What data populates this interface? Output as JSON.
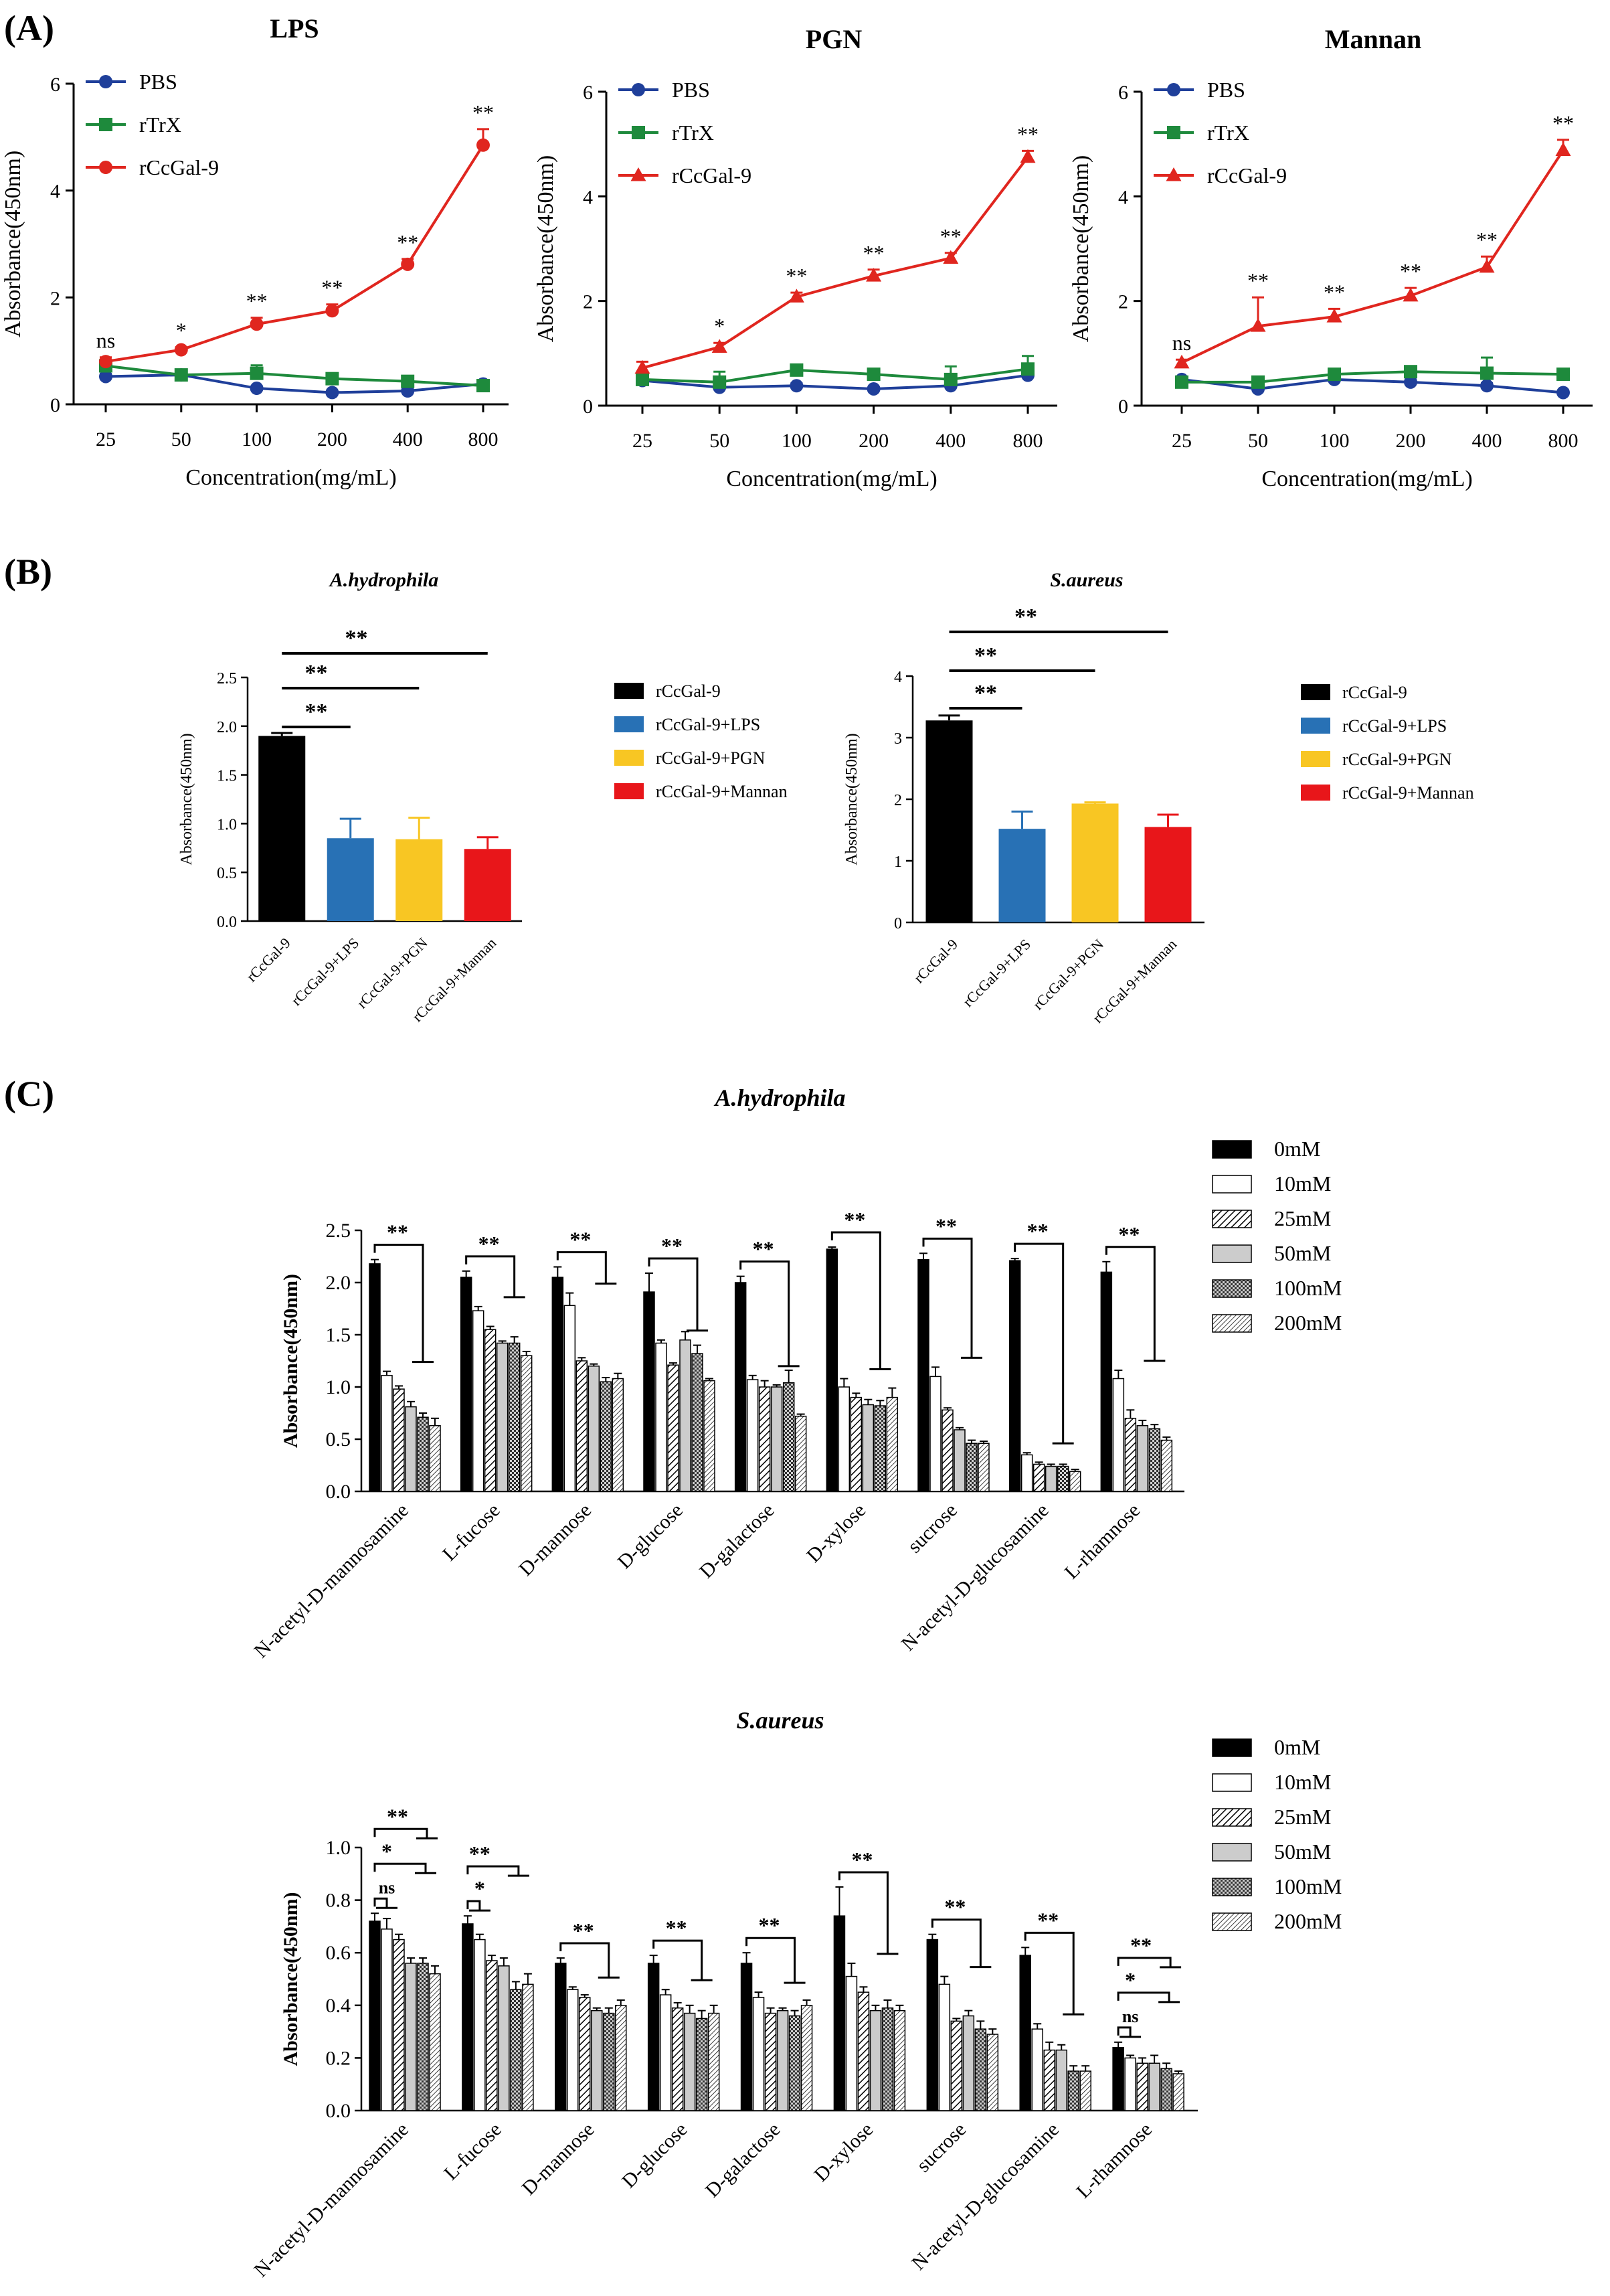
{
  "panels": {
    "a": "(A)",
    "b": "(B)",
    "c": "(C)"
  },
  "colors": {
    "pbs": "#1f3f9a",
    "rtrx": "#1e8a3c",
    "rccgal": "#e0261f",
    "bar_black": "#000000",
    "bar_lps": "#2871b5",
    "bar_pgn": "#f8c623",
    "bar_mannan": "#e8161a"
  },
  "chart_data": [
    {
      "id": "A1",
      "type": "line",
      "title": "LPS",
      "categories": [
        "25",
        "50",
        "100",
        "200",
        "400",
        "800"
      ],
      "xlabel": "Concentration(mg/mL)",
      "ylabel": "Absorbance(450nm)",
      "ylim": [
        0,
        6
      ],
      "yticks": [
        "0",
        "2",
        "4",
        "6"
      ],
      "legend": "top-left",
      "series": [
        {
          "name": "PBS",
          "marker": "circle",
          "color": "#1f3f9a",
          "values": [
            0.52,
            0.55,
            0.3,
            0.22,
            0.25,
            0.38
          ],
          "errors": [
            0.05,
            0.04,
            0.04,
            0.03,
            0.04,
            0.05
          ]
        },
        {
          "name": "rTrX",
          "marker": "square",
          "color": "#1e8a3c",
          "values": [
            0.72,
            0.55,
            0.58,
            0.48,
            0.43,
            0.35
          ],
          "errors": [
            0.1,
            0.06,
            0.15,
            0.06,
            0.05,
            0.04
          ]
        },
        {
          "name": "rCcGal-9",
          "marker": "circle",
          "color": "#e0261f",
          "values": [
            0.8,
            1.02,
            1.5,
            1.75,
            2.62,
            4.85
          ],
          "errors": [
            0.08,
            0.05,
            0.12,
            0.12,
            0.1,
            0.3
          ]
        }
      ],
      "annotations": [
        "ns",
        "*",
        "**",
        "**",
        "**",
        "**"
      ]
    },
    {
      "id": "A2",
      "type": "line",
      "title": "PGN",
      "categories": [
        "25",
        "50",
        "100",
        "200",
        "400",
        "800"
      ],
      "xlabel": "Concentration(mg/mL)",
      "ylabel": "Absorbance(450nm)",
      "ylim": [
        0,
        6
      ],
      "yticks": [
        "0",
        "2",
        "4",
        "6"
      ],
      "legend": "top-left",
      "series": [
        {
          "name": "PBS",
          "marker": "circle",
          "color": "#1f3f9a",
          "values": [
            0.48,
            0.35,
            0.38,
            0.32,
            0.38,
            0.58
          ],
          "errors": [
            0.05,
            0.04,
            0.05,
            0.04,
            0.05,
            0.08
          ]
        },
        {
          "name": "rTrX",
          "marker": "square",
          "color": "#1e8a3c",
          "values": [
            0.5,
            0.45,
            0.68,
            0.6,
            0.5,
            0.7
          ],
          "errors": [
            0.1,
            0.2,
            0.1,
            0.08,
            0.25,
            0.25
          ]
        },
        {
          "name": "rCcGal-9",
          "marker": "triangle",
          "color": "#e0261f",
          "values": [
            0.72,
            1.12,
            2.08,
            2.48,
            2.82,
            4.75
          ],
          "errors": [
            0.12,
            0.08,
            0.08,
            0.12,
            0.1,
            0.12
          ]
        }
      ],
      "annotations": [
        "",
        "*",
        "**",
        "**",
        "**",
        "**"
      ]
    },
    {
      "id": "A3",
      "type": "line",
      "title": "Mannan",
      "categories": [
        "25",
        "50",
        "100",
        "200",
        "400",
        "800"
      ],
      "xlabel": "Concentration(mg/mL)",
      "ylabel": "Absorbance(450nm)",
      "ylim": [
        0,
        6
      ],
      "yticks": [
        "0",
        "2",
        "4",
        "6"
      ],
      "legend": "top-left",
      "series": [
        {
          "name": "PBS",
          "marker": "circle",
          "color": "#1f3f9a",
          "values": [
            0.5,
            0.32,
            0.5,
            0.45,
            0.38,
            0.25
          ],
          "errors": [
            0.05,
            0.05,
            0.06,
            0.05,
            0.05,
            0.04
          ]
        },
        {
          "name": "rTrX",
          "marker": "square",
          "color": "#1e8a3c",
          "values": [
            0.45,
            0.45,
            0.6,
            0.65,
            0.62,
            0.6
          ],
          "errors": [
            0.06,
            0.06,
            0.1,
            0.08,
            0.3,
            0.05
          ]
        },
        {
          "name": "rCcGal-9",
          "marker": "triangle",
          "color": "#e0261f",
          "values": [
            0.82,
            1.52,
            1.7,
            2.1,
            2.65,
            4.88
          ],
          "errors": [
            0.06,
            0.55,
            0.15,
            0.15,
            0.2,
            0.2
          ]
        }
      ],
      "annotations": [
        "ns",
        "**",
        "**",
        "**",
        "**",
        "**"
      ]
    },
    {
      "id": "B1",
      "type": "bar",
      "title": "A.hydrophila",
      "categories": [
        "rCcGal-9",
        "rCcGal-9+LPS",
        "rCcGal-9+PGN",
        "rCcGal-9+Mannan"
      ],
      "values": [
        1.9,
        0.85,
        0.84,
        0.74
      ],
      "errors": [
        0.03,
        0.2,
        0.22,
        0.12
      ],
      "colors": [
        "#000000",
        "#2871b5",
        "#f8c623",
        "#e8161a"
      ],
      "ylabel": "Absorbance(450nm)",
      "ylim": [
        0,
        2.5
      ],
      "yticks": [
        "0.0",
        "0.5",
        "1.0",
        "1.5",
        "2.0",
        "2.5"
      ],
      "legend": "right",
      "legend_labels": [
        "rCcGal-9",
        "rCcGal-9+LPS",
        "rCcGal-9+PGN",
        "rCcGal-9+Mannan"
      ],
      "significance": [
        {
          "from": 0,
          "to": 1,
          "label": "**"
        },
        {
          "from": 0,
          "to": 2,
          "label": "**"
        },
        {
          "from": 0,
          "to": 3,
          "label": "**"
        }
      ]
    },
    {
      "id": "B2",
      "type": "bar",
      "title": "S.aureus",
      "categories": [
        "rCcGal-9",
        "rCcGal-9+LPS",
        "rCcGal-9+PGN",
        "rCcGal-9+Mannan"
      ],
      "values": [
        3.28,
        1.52,
        1.93,
        1.55
      ],
      "errors": [
        0.08,
        0.28,
        0.02,
        0.2
      ],
      "colors": [
        "#000000",
        "#2871b5",
        "#f8c623",
        "#e8161a"
      ],
      "ylabel": "Absorbance(450nm)",
      "ylim": [
        0,
        4
      ],
      "yticks": [
        "0",
        "1",
        "2",
        "3",
        "4"
      ],
      "legend": "right",
      "legend_labels": [
        "rCcGal-9",
        "rCcGal-9+LPS",
        "rCcGal-9+PGN",
        "rCcGal-9+Mannan"
      ],
      "significance": [
        {
          "from": 0,
          "to": 1,
          "label": "**"
        },
        {
          "from": 0,
          "to": 2,
          "label": "**"
        },
        {
          "from": 0,
          "to": 3,
          "label": "**"
        }
      ]
    },
    {
      "id": "C1",
      "type": "bar",
      "title": "A.hydrophila",
      "categories": [
        "N-acetyl-D-mannosamine",
        "L-fucose",
        "D-mannose",
        "D-glucose",
        "D-galactose",
        "D-xylose",
        "sucrose",
        "N-acetyl-D-glucosamine",
        "L-rhamnose"
      ],
      "series_names": [
        "0mM",
        "10mM",
        "25mM",
        "50mM",
        "100mM",
        "200mM"
      ],
      "values": [
        [
          2.18,
          1.11,
          0.98,
          0.81,
          0.71,
          0.63
        ],
        [
          2.05,
          1.73,
          1.55,
          1.42,
          1.42,
          1.3
        ],
        [
          2.05,
          1.78,
          1.25,
          1.2,
          1.05,
          1.08
        ],
        [
          1.91,
          1.42,
          1.21,
          1.45,
          1.32,
          1.06
        ],
        [
          2.0,
          1.07,
          1.0,
          1.0,
          1.04,
          0.72
        ],
        [
          2.32,
          1.0,
          0.9,
          0.83,
          0.82,
          0.9
        ],
        [
          2.22,
          1.1,
          0.78,
          0.59,
          0.46,
          0.46
        ],
        [
          2.21,
          0.35,
          0.26,
          0.24,
          0.24,
          0.19
        ],
        [
          2.1,
          1.08,
          0.7,
          0.63,
          0.6,
          0.49
        ]
      ],
      "errors": [
        [
          0.04,
          0.04,
          0.03,
          0.05,
          0.04,
          0.07
        ],
        [
          0.06,
          0.04,
          0.03,
          0.02,
          0.06,
          0.04
        ],
        [
          0.1,
          0.12,
          0.03,
          0.02,
          0.04,
          0.05
        ],
        [
          0.18,
          0.03,
          0.02,
          0.08,
          0.08,
          0.02
        ],
        [
          0.06,
          0.04,
          0.06,
          0.02,
          0.12,
          0.02
        ],
        [
          0.02,
          0.08,
          0.04,
          0.05,
          0.05,
          0.09
        ],
        [
          0.06,
          0.09,
          0.02,
          0.02,
          0.03,
          0.02
        ],
        [
          0.02,
          0.02,
          0.02,
          0.02,
          0.02,
          0.02
        ],
        [
          0.1,
          0.08,
          0.08,
          0.05,
          0.04,
          0.03
        ]
      ],
      "ylabel": "Absorbance(450nm)",
      "ylim": [
        0,
        2.5
      ],
      "yticks": [
        "0.0",
        "0.5",
        "1.0",
        "1.5",
        "2.0",
        "2.5"
      ],
      "legend": "top-right",
      "significance_labels": [
        "**",
        "**",
        "**",
        "**",
        "**",
        "**",
        "**",
        "**",
        "**"
      ]
    },
    {
      "id": "C2",
      "type": "bar",
      "title": "S.aureus",
      "categories": [
        "N-acetyl-D-mannosamine",
        "L-fucose",
        "D-mannose",
        "D-glucose",
        "D-galactose",
        "D-xylose",
        "sucrose",
        "N-acetyl-D-glucosamine",
        "L-rhamnose"
      ],
      "series_names": [
        "0mM",
        "10mM",
        "25mM",
        "50mM",
        "100mM",
        "200mM"
      ],
      "values": [
        [
          0.72,
          0.69,
          0.65,
          0.56,
          0.56,
          0.52
        ],
        [
          0.71,
          0.65,
          0.57,
          0.55,
          0.46,
          0.48
        ],
        [
          0.56,
          0.46,
          0.43,
          0.38,
          0.37,
          0.4
        ],
        [
          0.56,
          0.44,
          0.39,
          0.37,
          0.35,
          0.37
        ],
        [
          0.56,
          0.43,
          0.37,
          0.38,
          0.36,
          0.4
        ],
        [
          0.74,
          0.51,
          0.45,
          0.38,
          0.39,
          0.38
        ],
        [
          0.65,
          0.48,
          0.34,
          0.36,
          0.31,
          0.29
        ],
        [
          0.59,
          0.31,
          0.23,
          0.23,
          0.15,
          0.15
        ],
        [
          0.24,
          0.2,
          0.18,
          0.18,
          0.16,
          0.14
        ]
      ],
      "errors": [
        [
          0.03,
          0.04,
          0.02,
          0.02,
          0.02,
          0.03
        ],
        [
          0.03,
          0.02,
          0.02,
          0.03,
          0.03,
          0.04
        ],
        [
          0.02,
          0.01,
          0.01,
          0.01,
          0.02,
          0.02
        ],
        [
          0.03,
          0.02,
          0.02,
          0.03,
          0.03,
          0.03
        ],
        [
          0.04,
          0.02,
          0.02,
          0.01,
          0.02,
          0.02
        ],
        [
          0.11,
          0.05,
          0.02,
          0.02,
          0.03,
          0.02
        ],
        [
          0.02,
          0.03,
          0.01,
          0.02,
          0.03,
          0.02
        ],
        [
          0.03,
          0.02,
          0.03,
          0.02,
          0.02,
          0.02
        ],
        [
          0.02,
          0.01,
          0.02,
          0.03,
          0.02,
          0.01
        ]
      ],
      "ylabel": "Absorbance(450nm)",
      "ylim": [
        0,
        1.0
      ],
      "yticks": [
        "0.0",
        "0.2",
        "0.4",
        "0.6",
        "0.8",
        "1.0"
      ],
      "legend": "top-right",
      "significance_nested": {
        "0": [
          "ns",
          "*",
          "**"
        ],
        "1": [
          "*",
          "**"
        ],
        "8": [
          "ns",
          "*",
          "**"
        ]
      },
      "significance_labels": [
        "**",
        "**",
        "**",
        "**",
        "**",
        "**",
        "**",
        "**",
        "**"
      ]
    }
  ]
}
